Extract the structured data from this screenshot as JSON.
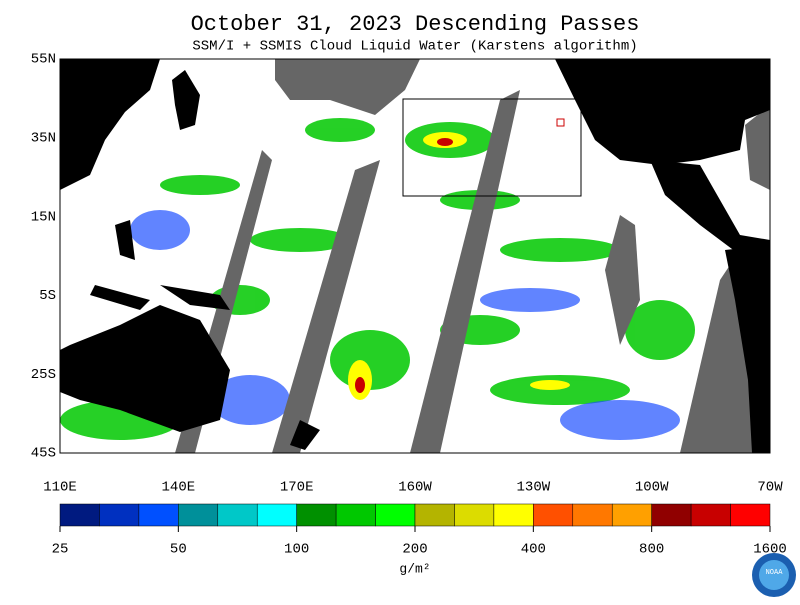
{
  "header": {
    "title": "October 31, 2023  Descending Passes",
    "subtitle": "SSM/I + SSMIS Cloud Liquid Water (Karstens algorithm)"
  },
  "map": {
    "lat_labels": [
      "55N",
      "35N",
      "15N",
      "5S",
      "25S",
      "45S"
    ],
    "lon_labels": [
      "110E",
      "140E",
      "170E",
      "160W",
      "130W",
      "100W",
      "70W"
    ]
  },
  "colorbar": {
    "ticks": [
      25,
      50,
      100,
      200,
      400,
      800,
      1600
    ],
    "log_scale": true,
    "colors": [
      "#001a80",
      "#0030c0",
      "#0050ff",
      "#00909a",
      "#00c8c8",
      "#00ffff",
      "#009000",
      "#00c800",
      "#00ff00",
      "#b4b400",
      "#dcdc00",
      "#ffff00",
      "#ff5000",
      "#ff7800",
      "#ffa000",
      "#900000",
      "#c80000",
      "#ff0000"
    ],
    "unit": "g/m²"
  },
  "logo": {
    "text": "NOAA"
  }
}
